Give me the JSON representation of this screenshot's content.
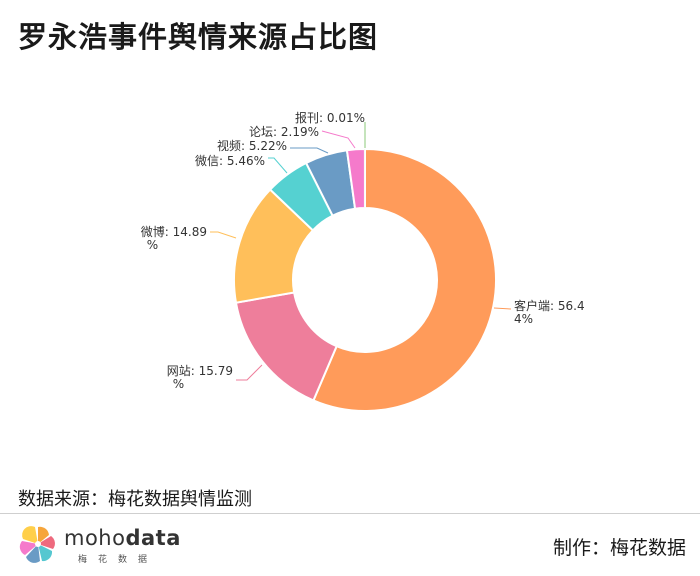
{
  "title": "罗永浩事件舆情来源占比图",
  "source": "数据来源：梅花数据舆情监测",
  "brand": {
    "part1": "moho",
    "part2": "data",
    "sub": "梅花数据"
  },
  "credit": "制作：梅花数据",
  "chart_data": {
    "type": "pie",
    "variant": "donut",
    "title": "罗永浩事件舆情来源占比图",
    "slices": [
      {
        "label": "客户端",
        "value": 56.44,
        "display": [
          "客户端: 56.4",
          "4%"
        ],
        "color": "#FF9B5A"
      },
      {
        "label": "网站",
        "value": 15.79,
        "display": [
          "网站: 15.79",
          "%"
        ],
        "color": "#EE7E9B"
      },
      {
        "label": "微博",
        "value": 14.89,
        "display": [
          "微博: 14.89",
          "%"
        ],
        "color": "#FFBF5A"
      },
      {
        "label": "微信",
        "value": 5.46,
        "display": [
          "微信: 5.46%"
        ],
        "color": "#55D1D1"
      },
      {
        "label": "视频",
        "value": 5.22,
        "display": [
          "视频: 5.22%"
        ],
        "color": "#6A9BC5"
      },
      {
        "label": "论坛",
        "value": 2.19,
        "display": [
          "论坛: 2.19%"
        ],
        "color": "#F57ACB"
      },
      {
        "label": "报刊",
        "value": 0.01,
        "display": [
          "报刊: 0.01%"
        ],
        "color": "#8BC87A"
      }
    ]
  }
}
